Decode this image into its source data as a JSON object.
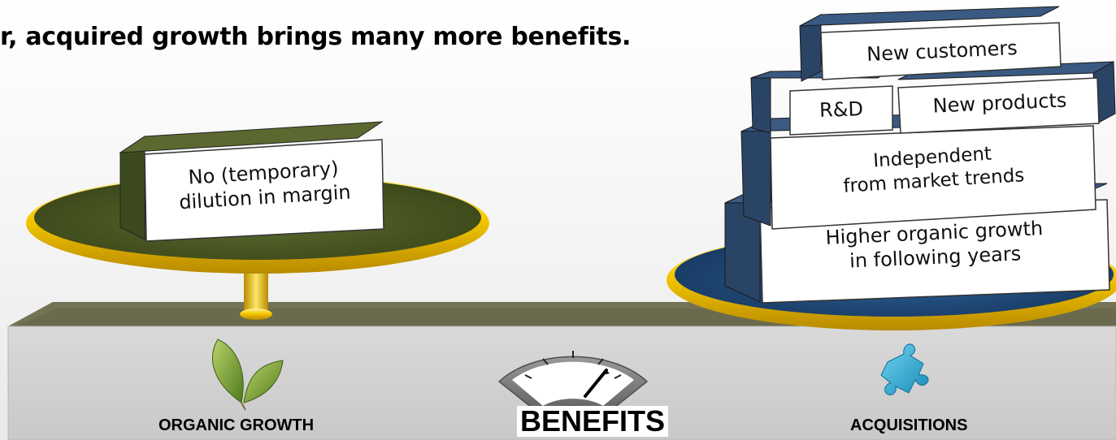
{
  "headline": "r, acquired growth brings many more benefits.",
  "left_pan": {
    "block_lines": [
      "No (temporary)",
      "dilution in margin"
    ]
  },
  "right_pan": {
    "blocks": {
      "new_customers": "New customers",
      "rnd": "R&D",
      "new_products": "New products",
      "independent": [
        "Independent",
        "from market trends"
      ],
      "higher_growth": [
        "Higher organic growth",
        "in following years"
      ]
    }
  },
  "base": {
    "left_label": "ORGANIC GROWTH",
    "center_label": "BENEFITS",
    "right_label": "ACQUISITIONS"
  },
  "icons": {
    "left": "leaf-icon",
    "center": "gauge-icon",
    "right": "puzzle-piece-icon"
  },
  "colors": {
    "left_block": "#4d5a2b",
    "right_block": "#2f4d73",
    "left_plate": "#4c5a28",
    "right_plate": "#1f4a7a",
    "rim": "#f2c500",
    "base_top": "#6b6a4e",
    "base_front": "#d5d5d5"
  }
}
